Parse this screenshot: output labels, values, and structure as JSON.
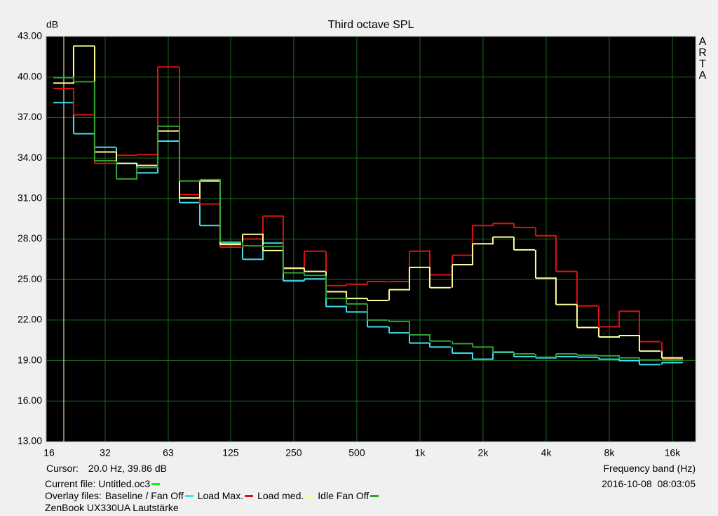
{
  "chart_data": {
    "type": "step",
    "title": "Third octave SPL",
    "y_label": "dB",
    "x_label": "Frequency band (Hz)",
    "logo": "ARTA",
    "x": [
      20,
      25,
      31.5,
      40,
      50,
      63,
      80,
      100,
      125,
      160,
      200,
      250,
      315,
      400,
      500,
      630,
      800,
      1000,
      1250,
      1600,
      2000,
      2500,
      3150,
      4000,
      5000,
      6300,
      8000,
      10000,
      12500,
      16000
    ],
    "series": [
      {
        "name": "Baseline / Fan Off",
        "color": "#40e0f0",
        "values": [
          38.1,
          35.8,
          34.8,
          33.6,
          32.9,
          35.25,
          30.7,
          29.0,
          27.7,
          26.5,
          27.7,
          24.9,
          25.05,
          23.0,
          22.6,
          21.5,
          21.05,
          20.3,
          20.0,
          19.55,
          19.1,
          19.6,
          19.3,
          19.2,
          19.3,
          19.25,
          19.1,
          19.0,
          18.7,
          18.85
        ]
      },
      {
        "name": "Load Max.",
        "color": "#e01010",
        "values": [
          39.15,
          37.2,
          33.6,
          34.2,
          34.25,
          40.75,
          31.3,
          30.6,
          27.4,
          28.0,
          29.7,
          25.8,
          27.1,
          24.55,
          24.65,
          24.85,
          24.85,
          27.1,
          25.35,
          26.8,
          29.0,
          29.15,
          28.85,
          28.25,
          25.6,
          23.05,
          21.5,
          22.65,
          20.4,
          19.15
        ]
      },
      {
        "name": "Load med.",
        "color": "#ffff99",
        "values": [
          39.55,
          42.3,
          34.45,
          33.6,
          33.45,
          36.0,
          31.05,
          32.3,
          27.6,
          28.35,
          27.15,
          25.85,
          25.6,
          24.1,
          23.6,
          23.45,
          24.25,
          25.9,
          24.4,
          26.1,
          27.65,
          28.15,
          27.2,
          25.1,
          23.15,
          21.45,
          20.75,
          20.85,
          19.7,
          19.2
        ]
      },
      {
        "name": "Idle Fan Off",
        "color": "#30a030",
        "values": [
          39.95,
          39.65,
          33.8,
          32.45,
          33.3,
          36.35,
          32.3,
          32.4,
          27.8,
          27.5,
          27.45,
          25.5,
          25.3,
          23.6,
          23.2,
          22.0,
          21.9,
          20.9,
          20.45,
          20.25,
          20.0,
          19.65,
          19.5,
          19.25,
          19.5,
          19.4,
          19.35,
          19.2,
          19.05,
          19.05
        ]
      }
    ],
    "log_x": true,
    "xlim": [
      16.5,
      20640
    ],
    "ylim": [
      13,
      43
    ],
    "xticks": [
      16,
      {
        "value": 31.5,
        "label": "32"
      },
      63,
      125,
      250,
      500,
      {
        "value": 1000,
        "label": "1k"
      },
      {
        "value": 2000,
        "label": "2k"
      },
      {
        "value": 4000,
        "label": "4k"
      },
      {
        "value": 8000,
        "label": "8k"
      },
      {
        "value": 16000,
        "label": "16k"
      }
    ],
    "yticks": [
      {
        "value": 13,
        "label": "13.00"
      },
      {
        "value": 16,
        "label": "16.00"
      },
      {
        "value": 19,
        "label": "19.00"
      },
      {
        "value": 22,
        "label": "22.00"
      },
      {
        "value": 25,
        "label": "25.00"
      },
      {
        "value": 28,
        "label": "28.00"
      },
      {
        "value": 31,
        "label": "31.00"
      },
      {
        "value": 34,
        "label": "34.00"
      },
      {
        "value": 37,
        "label": "37.00"
      },
      {
        "value": 40,
        "label": "40.00"
      },
      {
        "value": 43,
        "label": "43.00"
      }
    ],
    "grid": true,
    "cursor": {
      "label": "Cursor:",
      "text": "20.0 Hz, 39.86 dB",
      "x": 20,
      "color": "#ffffc0"
    },
    "current_file": {
      "text": "Current file: Untitled.oc3",
      "color": "#00ff00"
    },
    "overlay_label": "Overlay files:",
    "timestamp": "2016-10-08  08:03:05",
    "note": "ZenBook UX330UA Lautstärke"
  }
}
